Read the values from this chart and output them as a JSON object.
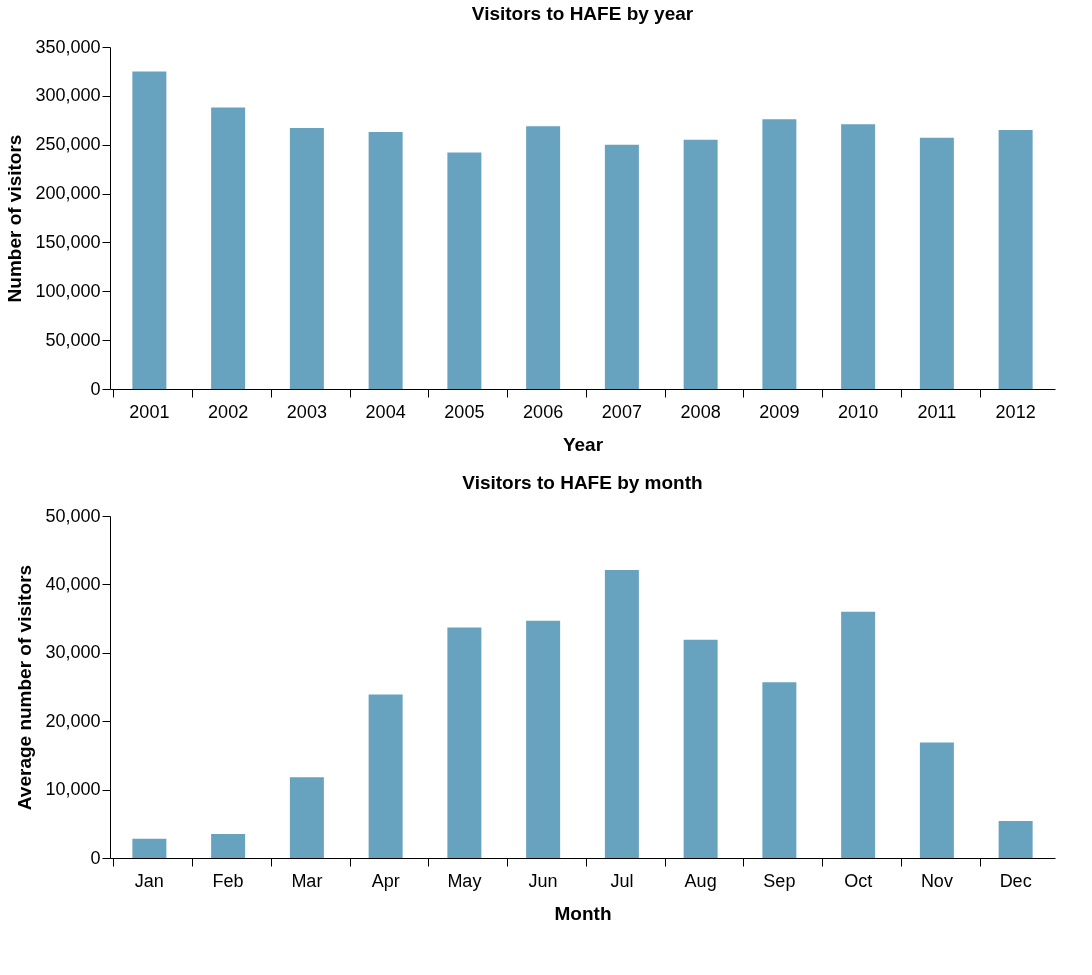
{
  "chart_data": [
    {
      "type": "bar",
      "title": "Visitors to HAFE by year",
      "xlabel": "Year",
      "ylabel": "Number of visitors",
      "categories": [
        "2001",
        "2002",
        "2003",
        "2004",
        "2005",
        "2006",
        "2007",
        "2008",
        "2009",
        "2010",
        "2011",
        "2012"
      ],
      "values": [
        325000,
        288000,
        267000,
        263000,
        242000,
        269000,
        250000,
        255000,
        276000,
        271000,
        257000,
        265000
      ],
      "color": "#67a2bf",
      "ylim": [
        0,
        350000
      ],
      "yticks": [
        0,
        {
          "value": 50000,
          "label": "50,000"
        },
        {
          "value": 100000,
          "label": "100,000"
        },
        {
          "value": 150000,
          "label": "150,000"
        },
        {
          "value": 200000,
          "label": "200,000"
        },
        {
          "value": 250000,
          "label": "250,000"
        },
        {
          "value": 300000,
          "label": "300,000"
        },
        {
          "value": 350000,
          "label": "350,000"
        }
      ],
      "grid": false
    },
    {
      "type": "bar",
      "title": "Visitors to HAFE by month",
      "xlabel": "Month",
      "ylabel": "Average number of visitors",
      "categories": [
        "Jan",
        "Feb",
        "Mar",
        "Apr",
        "May",
        "Jun",
        "Jul",
        "Aug",
        "Sep",
        "Oct",
        "Nov",
        "Dec"
      ],
      "values": [
        2800,
        3500,
        11800,
        23900,
        33700,
        34700,
        42100,
        31900,
        25700,
        36000,
        16900,
        5400
      ],
      "color": "#67a2bf",
      "ylim": [
        0,
        50000
      ],
      "yticks": [
        0,
        {
          "value": 10000,
          "label": "10,000"
        },
        {
          "value": 20000,
          "label": "20,000"
        },
        {
          "value": 30000,
          "label": "30,000"
        },
        {
          "value": 40000,
          "label": "40,000"
        },
        {
          "value": 50000,
          "label": "50,000"
        }
      ],
      "grid": false
    }
  ]
}
